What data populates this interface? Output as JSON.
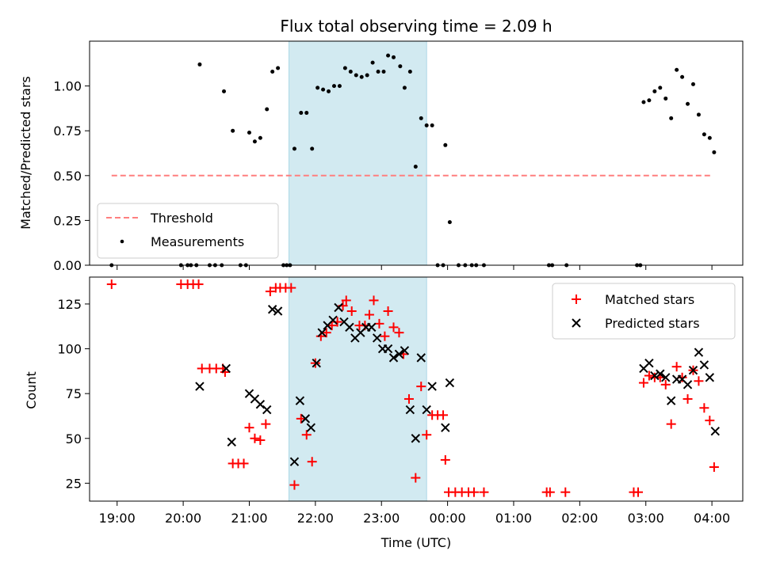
{
  "colors": {
    "shade": "#add8e6",
    "threshold": "#ff7f7f",
    "matched": "#ff0000",
    "predicted": "#000000",
    "measurement": "#000000"
  },
  "chart_data": [
    {
      "type": "scatter",
      "title": "Flux total observing time = 2.09 h",
      "ylabel": "Matched/Predicted stars",
      "xlabel": "",
      "xlim": [
        "18:35",
        "04:28"
      ],
      "ylim": [
        0,
        1.25
      ],
      "y_ticks": [
        "0.00",
        "0.25",
        "0.50",
        "0.75",
        "1.00"
      ],
      "shaded_interval": [
        "21:36",
        "23:41"
      ],
      "legend": {
        "placement": "lower-left",
        "entries": [
          "Threshold",
          "Measurements"
        ]
      },
      "threshold": {
        "name": "Threshold",
        "value": 0.5,
        "x_range": [
          "18:55",
          "04:00"
        ]
      },
      "series": [
        {
          "name": "Measurements",
          "points": [
            [
              "18:55",
              0.0
            ],
            [
              "19:58",
              0.0
            ],
            [
              "20:04",
              0.0
            ],
            [
              "20:07",
              0.0
            ],
            [
              "20:12",
              0.0
            ],
            [
              "20:15",
              1.12
            ],
            [
              "20:24",
              0.0
            ],
            [
              "20:29",
              0.0
            ],
            [
              "20:35",
              0.0
            ],
            [
              "20:37",
              0.97
            ],
            [
              "20:45",
              0.75
            ],
            [
              "20:52",
              0.0
            ],
            [
              "20:57",
              0.0
            ],
            [
              "21:00",
              0.74
            ],
            [
              "21:05",
              0.69
            ],
            [
              "21:10",
              0.71
            ],
            [
              "21:16",
              0.87
            ],
            [
              "21:21",
              1.08
            ],
            [
              "21:26",
              1.1
            ],
            [
              "21:31",
              0.0
            ],
            [
              "21:34",
              0.0
            ],
            [
              "21:37",
              0.0
            ],
            [
              "21:41",
              0.65
            ],
            [
              "21:47",
              0.85
            ],
            [
              "21:52",
              0.85
            ],
            [
              "21:57",
              0.65
            ],
            [
              "22:02",
              0.99
            ],
            [
              "22:07",
              0.98
            ],
            [
              "22:12",
              0.97
            ],
            [
              "22:17",
              1.0
            ],
            [
              "22:22",
              1.0
            ],
            [
              "22:27",
              1.1
            ],
            [
              "22:32",
              1.08
            ],
            [
              "22:37",
              1.06
            ],
            [
              "22:42",
              1.05
            ],
            [
              "22:47",
              1.06
            ],
            [
              "22:52",
              1.13
            ],
            [
              "22:57",
              1.08
            ],
            [
              "23:02",
              1.08
            ],
            [
              "23:06",
              1.17
            ],
            [
              "23:11",
              1.16
            ],
            [
              "23:17",
              1.11
            ],
            [
              "23:21",
              0.99
            ],
            [
              "23:26",
              1.08
            ],
            [
              "23:31",
              0.55
            ],
            [
              "23:36",
              0.82
            ],
            [
              "23:41",
              0.78
            ],
            [
              "23:46",
              0.78
            ],
            [
              "23:51",
              0.0
            ],
            [
              "23:56",
              0.0
            ],
            [
              "23:58",
              0.67
            ],
            [
              "00:02",
              0.24
            ],
            [
              "00:10",
              0.0
            ],
            [
              "00:16",
              0.0
            ],
            [
              "00:22",
              0.0
            ],
            [
              "00:26",
              0.0
            ],
            [
              "00:33",
              0.0
            ],
            [
              "01:32",
              0.0
            ],
            [
              "01:35",
              0.0
            ],
            [
              "01:48",
              0.0
            ],
            [
              "02:52",
              0.0
            ],
            [
              "02:55",
              0.0
            ],
            [
              "02:58",
              0.91
            ],
            [
              "03:03",
              0.92
            ],
            [
              "03:08",
              0.97
            ],
            [
              "03:13",
              0.99
            ],
            [
              "03:18",
              0.93
            ],
            [
              "03:23",
              0.82
            ],
            [
              "03:28",
              1.09
            ],
            [
              "03:33",
              1.05
            ],
            [
              "03:38",
              0.9
            ],
            [
              "03:43",
              1.01
            ],
            [
              "03:48",
              0.84
            ],
            [
              "03:53",
              0.73
            ],
            [
              "03:58",
              0.71
            ],
            [
              "04:02",
              0.63
            ]
          ]
        }
      ]
    },
    {
      "type": "scatter",
      "title": "",
      "ylabel": "Count",
      "xlabel": "Time (UTC)",
      "xlim": [
        "18:35",
        "04:28"
      ],
      "ylim": [
        15,
        140
      ],
      "y_ticks": [
        "25",
        "50",
        "75",
        "100",
        "125"
      ],
      "x_ticks": [
        "19:00",
        "20:00",
        "21:00",
        "22:00",
        "23:00",
        "00:00",
        "01:00",
        "02:00",
        "03:00",
        "04:00"
      ],
      "shaded_interval": [
        "21:36",
        "23:41"
      ],
      "legend": {
        "placement": "top-right",
        "entries": [
          "Matched stars",
          "Predicted stars"
        ]
      },
      "series": [
        {
          "name": "Matched stars",
          "marker": "plus",
          "points": [
            [
              "18:55",
              136
            ],
            [
              "19:58",
              136
            ],
            [
              "20:04",
              136
            ],
            [
              "20:09",
              136
            ],
            [
              "20:14",
              136
            ],
            [
              "20:17",
              89
            ],
            [
              "20:24",
              89
            ],
            [
              "20:30",
              89
            ],
            [
              "20:36",
              89
            ],
            [
              "20:38",
              87
            ],
            [
              "20:45",
              36
            ],
            [
              "20:50",
              36
            ],
            [
              "20:55",
              36
            ],
            [
              "21:00",
              56
            ],
            [
              "21:05",
              50
            ],
            [
              "21:10",
              49
            ],
            [
              "21:15",
              58
            ],
            [
              "21:19",
              132
            ],
            [
              "21:24",
              134
            ],
            [
              "21:28",
              134
            ],
            [
              "21:33",
              134
            ],
            [
              "21:38",
              134
            ],
            [
              "21:41",
              24
            ],
            [
              "21:47",
              61
            ],
            [
              "21:52",
              52
            ],
            [
              "21:57",
              37
            ],
            [
              "22:00",
              92
            ],
            [
              "22:05",
              107
            ],
            [
              "22:10",
              109
            ],
            [
              "22:15",
              113
            ],
            [
              "22:20",
              115
            ],
            [
              "22:25",
              124
            ],
            [
              "22:28",
              127
            ],
            [
              "22:33",
              121
            ],
            [
              "22:40",
              113
            ],
            [
              "22:45",
              113
            ],
            [
              "22:49",
              119
            ],
            [
              "22:53",
              127
            ],
            [
              "22:58",
              114
            ],
            [
              "23:03",
              107
            ],
            [
              "23:06",
              121
            ],
            [
              "23:11",
              112
            ],
            [
              "23:16",
              109
            ],
            [
              "23:20",
              97
            ],
            [
              "23:25",
              72
            ],
            [
              "23:31",
              28
            ],
            [
              "23:36",
              79
            ],
            [
              "23:41",
              52
            ],
            [
              "23:46",
              63
            ],
            [
              "23:51",
              63
            ],
            [
              "23:56",
              63
            ],
            [
              "23:58",
              38
            ],
            [
              "00:01",
              20
            ],
            [
              "00:07",
              20
            ],
            [
              "00:13",
              20
            ],
            [
              "00:19",
              20
            ],
            [
              "00:24",
              20
            ],
            [
              "00:33",
              20
            ],
            [
              "01:30",
              20
            ],
            [
              "01:33",
              20
            ],
            [
              "01:47",
              20
            ],
            [
              "02:49",
              20
            ],
            [
              "02:53",
              20
            ],
            [
              "02:58",
              81
            ],
            [
              "03:03",
              85
            ],
            [
              "03:08",
              84
            ],
            [
              "03:13",
              84
            ],
            [
              "03:18",
              80
            ],
            [
              "03:23",
              58
            ],
            [
              "03:28",
              90
            ],
            [
              "03:33",
              84
            ],
            [
              "03:38",
              72
            ],
            [
              "03:43",
              88
            ],
            [
              "03:48",
              82
            ],
            [
              "03:53",
              67
            ],
            [
              "03:58",
              60
            ],
            [
              "04:02",
              34
            ]
          ]
        },
        {
          "name": "Predicted stars",
          "marker": "x",
          "points": [
            [
              "20:15",
              79
            ],
            [
              "20:39",
              89
            ],
            [
              "20:44",
              48
            ],
            [
              "21:00",
              75
            ],
            [
              "21:05",
              72
            ],
            [
              "21:10",
              69
            ],
            [
              "21:16",
              66
            ],
            [
              "21:21",
              122
            ],
            [
              "21:26",
              121
            ],
            [
              "21:41",
              37
            ],
            [
              "21:46",
              71
            ],
            [
              "21:51",
              61
            ],
            [
              "21:56",
              56
            ],
            [
              "22:01",
              92
            ],
            [
              "22:06",
              109
            ],
            [
              "22:11",
              113
            ],
            [
              "22:16",
              116
            ],
            [
              "22:21",
              123
            ],
            [
              "22:26",
              115
            ],
            [
              "22:31",
              112
            ],
            [
              "22:36",
              106
            ],
            [
              "22:41",
              109
            ],
            [
              "22:46",
              112
            ],
            [
              "22:51",
              112
            ],
            [
              "22:56",
              106
            ],
            [
              "23:01",
              100
            ],
            [
              "23:06",
              100
            ],
            [
              "23:11",
              95
            ],
            [
              "23:16",
              97
            ],
            [
              "23:21",
              99
            ],
            [
              "23:26",
              66
            ],
            [
              "23:31",
              50
            ],
            [
              "23:36",
              95
            ],
            [
              "23:41",
              66
            ],
            [
              "23:46",
              79
            ],
            [
              "23:58",
              56
            ],
            [
              "00:02",
              81
            ],
            [
              "02:58",
              89
            ],
            [
              "03:03",
              92
            ],
            [
              "03:08",
              85
            ],
            [
              "03:13",
              86
            ],
            [
              "03:18",
              84
            ],
            [
              "03:23",
              71
            ],
            [
              "03:28",
              83
            ],
            [
              "03:33",
              83
            ],
            [
              "03:38",
              80
            ],
            [
              "03:43",
              88
            ],
            [
              "03:48",
              98
            ],
            [
              "03:53",
              91
            ],
            [
              "03:58",
              84
            ],
            [
              "04:03",
              54
            ]
          ]
        }
      ]
    }
  ]
}
